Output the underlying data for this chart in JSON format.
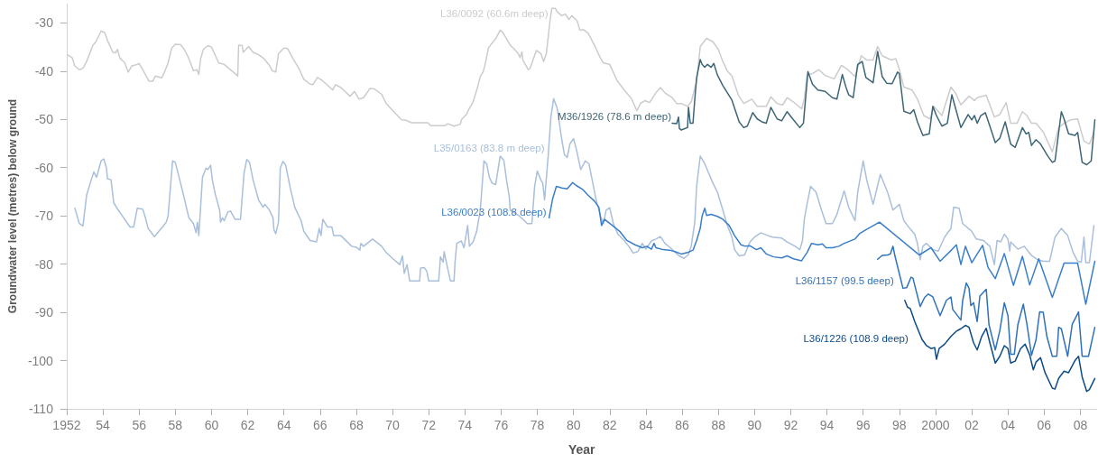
{
  "chart_data": {
    "type": "line",
    "xlabel": "Year",
    "ylabel": "Groundwater level (metres) below ground",
    "xlim": [
      1952,
      2008.9
    ],
    "ylim": [
      -110,
      -26
    ],
    "xticks": [
      1952,
      {
        "value": 1954,
        "label": "54"
      },
      {
        "value": 1956,
        "label": "56"
      },
      {
        "value": 1958,
        "label": "58"
      },
      {
        "value": 1960,
        "label": "60"
      },
      {
        "value": 1962,
        "label": "62"
      },
      {
        "value": 1964,
        "label": "64"
      },
      {
        "value": 1966,
        "label": "66"
      },
      {
        "value": 1968,
        "label": "68"
      },
      {
        "value": 1970,
        "label": "70"
      },
      {
        "value": 1972,
        "label": "72"
      },
      {
        "value": 1974,
        "label": "74"
      },
      {
        "value": 1976,
        "label": "76"
      },
      {
        "value": 1978,
        "label": "78"
      },
      {
        "value": 1980,
        "label": "80"
      },
      {
        "value": 1982,
        "label": "82"
      },
      {
        "value": 1984,
        "label": "84"
      },
      {
        "value": 1986,
        "label": "86"
      },
      {
        "value": 1988,
        "label": "88"
      },
      {
        "value": 1990,
        "label": "90"
      },
      {
        "value": 1992,
        "label": "92"
      },
      {
        "value": 1994,
        "label": "94"
      },
      {
        "value": 1996,
        "label": "96"
      },
      {
        "value": 1998,
        "label": "98"
      },
      2000,
      {
        "value": 2002,
        "label": "02"
      },
      {
        "value": 2004,
        "label": "04"
      },
      {
        "value": 2006,
        "label": "06"
      },
      {
        "value": 2008,
        "label": "08"
      }
    ],
    "yticks": [
      -110,
      -100,
      -90,
      -80,
      -70,
      -60,
      -50,
      -40,
      -30
    ],
    "marker": "none",
    "series": [
      {
        "name": "L36/0092 (60.6m deep)",
        "color": "#cccccc",
        "x": [
          1952.03,
          1952.3,
          1952.45,
          1952.7,
          1952.9,
          1953.1,
          1953.45,
          1953.6,
          1953.9,
          1954.1,
          1954.25,
          1954.55,
          1954.7,
          1954.8,
          1954.95,
          1955.2,
          1955.4,
          1955.6,
          1955.9,
          1956.0,
          1956.2,
          1956.55,
          1956.75,
          1956.9,
          1957.25,
          1957.4,
          1957.6,
          1957.8,
          1958.0,
          1958.3,
          1958.5,
          1958.75,
          1959.0,
          1959.2,
          1959.3,
          1959.4,
          1959.55,
          1959.8,
          1960.0,
          1960.4,
          1960.7,
          1961.45,
          1961.5,
          1961.7,
          1961.75,
          1962.05,
          1962.3,
          1962.6,
          1962.9,
          1963.2,
          1963.35,
          1963.55,
          1963.7,
          1964.0,
          1964.2,
          1964.5,
          1964.85,
          1965.1,
          1965.45,
          1965.6,
          1965.85,
          1966.1,
          1966.35,
          1966.7,
          1966.85,
          1967.15,
          1967.65,
          1967.9,
          1968.15,
          1968.4,
          1968.75,
          1969.0,
          1969.4,
          1969.65,
          1970.05,
          1970.5,
          1970.75,
          1971.05,
          1971.95,
          1972.1,
          1972.9,
          1973.05,
          1973.4,
          1973.75,
          1973.8,
          1974.1,
          1974.2,
          1974.45,
          1974.7,
          1974.85,
          1975.0,
          1975.1,
          1975.3,
          1975.45,
          1975.7,
          1975.95,
          1976.1,
          1976.3,
          1976.5,
          1976.7,
          1976.95,
          1977.05,
          1977.15,
          1977.2,
          1977.5,
          1977.6,
          1977.95,
          1978.2,
          1978.35,
          1978.5,
          1978.7,
          1978.8,
          1979.0,
          1979.1,
          1979.35,
          1979.55,
          1979.75,
          1979.9,
          1980.2,
          1980.35,
          1980.55,
          1980.8,
          1981.15,
          1981.5,
          1981.65,
          1982.0,
          1982.4,
          1982.8,
          1983.2,
          1983.5,
          1983.7,
          1983.95,
          1984.2,
          1984.55,
          1984.8,
          1985.05,
          1985.45,
          1985.7,
          1985.95,
          1986.3,
          1986.5,
          1986.8,
          1987.0,
          1987.35,
          1987.7,
          1988.0,
          1988.25,
          1988.5,
          1988.75,
          1989.1,
          1989.4,
          1989.85,
          1990.15,
          1990.65,
          1990.9,
          1991.25,
          1991.55,
          1991.8,
          1992.15,
          1992.6,
          1992.75,
          1992.9,
          1993.2,
          1993.55,
          1993.9,
          1994.4,
          1994.8,
          1995.15,
          1995.55,
          1995.9,
          1996.2,
          1996.55,
          1996.8,
          1997.05,
          1997.55,
          1997.8,
          1998.0,
          1998.25,
          1998.7,
          1999.0,
          1999.35,
          1999.7,
          1999.9,
          2000.35,
          2000.85,
          2001.1,
          2001.4,
          2001.85,
          2002.15,
          2002.3,
          2002.8,
          2003.25,
          2003.55,
          2003.9,
          2004.15,
          2004.5,
          2004.8,
          2005.05,
          2005.3,
          2005.55,
          2005.95,
          2006.45,
          2006.8,
          2007.1,
          2007.45,
          2007.85,
          2008.2,
          2008.5,
          2008.75
        ],
        "values": [
          -36.6,
          -37.2,
          -38.9,
          -39.7,
          -39.4,
          -38.0,
          -34.6,
          -34.0,
          -31.7,
          -32.0,
          -33.6,
          -36.1,
          -36.2,
          -35.5,
          -37.4,
          -38.2,
          -40.2,
          -38.9,
          -38.6,
          -38.4,
          -39.7,
          -42.1,
          -42.1,
          -41.0,
          -41.4,
          -40.2,
          -38.3,
          -35.2,
          -34.4,
          -34.5,
          -35.5,
          -37.4,
          -39.9,
          -39.7,
          -40.7,
          -37.4,
          -35.5,
          -34.7,
          -35.0,
          -38.3,
          -38.6,
          -41.0,
          -34.6,
          -34.7,
          -36.1,
          -34.9,
          -36.1,
          -36.6,
          -37.4,
          -38.8,
          -39.9,
          -40.2,
          -36.4,
          -35.2,
          -35.3,
          -37.4,
          -39.6,
          -41.7,
          -42.7,
          -42.8,
          -41.3,
          -41.9,
          -42.7,
          -43.9,
          -42.8,
          -43.4,
          -45.2,
          -44.2,
          -45.8,
          -45.5,
          -43.6,
          -43.7,
          -44.8,
          -46.7,
          -48.3,
          -50.1,
          -50.2,
          -50.7,
          -50.7,
          -51.3,
          -51.3,
          -50.9,
          -51.4,
          -51.0,
          -50.1,
          -48.9,
          -48.0,
          -46.4,
          -43.3,
          -41.1,
          -40.2,
          -38.9,
          -35.2,
          -34.4,
          -33.3,
          -31.5,
          -32.0,
          -33.3,
          -34.6,
          -35.3,
          -36.4,
          -37.2,
          -36.0,
          -37.7,
          -39.7,
          -39.4,
          -35.7,
          -36.4,
          -38.0,
          -36.3,
          -29.6,
          -27.0,
          -27.0,
          -27.7,
          -28.5,
          -28.2,
          -29.3,
          -28.5,
          -29.6,
          -31.5,
          -31.4,
          -32.1,
          -34.6,
          -37.4,
          -38.3,
          -38.6,
          -41.9,
          -43.9,
          -45.7,
          -48.2,
          -46.7,
          -46.1,
          -46.5,
          -44.5,
          -43.4,
          -44.5,
          -45.5,
          -46.7,
          -46.7,
          -47.3,
          -46.4,
          -42.1,
          -34.9,
          -33.2,
          -33.9,
          -35.5,
          -38.0,
          -40.0,
          -41.0,
          -44.9,
          -46.7,
          -45.8,
          -47.3,
          -47.3,
          -45.3,
          -46.7,
          -47.0,
          -45.5,
          -46.4,
          -47.8,
          -45.8,
          -40.8,
          -40.5,
          -39.7,
          -40.9,
          -41.6,
          -38.8,
          -39.7,
          -41.1,
          -36.8,
          -37.7,
          -37.7,
          -34.9,
          -36.8,
          -37.7,
          -37.4,
          -39.6,
          -43.3,
          -43.9,
          -45.8,
          -49.2,
          -49.9,
          -47.3,
          -49.2,
          -43.3,
          -44.5,
          -47.0,
          -45.2,
          -46.1,
          -45.5,
          -45.0,
          -49.5,
          -49.0,
          -46.5,
          -50.8,
          -50.8,
          -48.4,
          -49.2,
          -50.8,
          -50.8,
          -52.6,
          -56.7,
          -51.7,
          -50.8,
          -50.1,
          -49.9,
          -54.5,
          -55.1,
          -52.7
        ]
      },
      {
        "name": "M36/1926 (78.6 m deep)",
        "color": "#3d6576",
        "x": [
          1985.45,
          1985.7,
          1985.8,
          1985.85,
          1985.95,
          1986.3,
          1986.35,
          1986.45,
          1986.6,
          1986.7,
          1986.8,
          1987.0,
          1987.1,
          1987.25,
          1987.4,
          1987.6,
          1987.75,
          1987.95,
          1988.25,
          1988.5,
          1988.75,
          1989.15,
          1989.4,
          1989.6,
          1989.9,
          1990.15,
          1990.4,
          1990.65,
          1990.9,
          1991.25,
          1991.5,
          1991.8,
          1992.15,
          1992.5,
          1992.7,
          1992.95,
          1993.2,
          1993.5,
          1993.9,
          1994.3,
          1994.55,
          1994.85,
          1995.05,
          1995.2,
          1995.45,
          1995.7,
          1995.95,
          1996.15,
          1996.55,
          1996.8,
          1997.05,
          1997.3,
          1997.6,
          1997.9,
          1998.0,
          1998.25,
          1998.6,
          1998.8,
          1999.0,
          1999.3,
          1999.65,
          1999.85,
          2000.05,
          2000.35,
          2000.65,
          2000.9,
          2001.15,
          2001.4,
          2001.8,
          2002.0,
          2002.15,
          2002.3,
          2002.5,
          2002.75,
          2003.0,
          2003.3,
          2003.55,
          2003.85,
          2004.15,
          2004.4,
          2004.8,
          2005.0,
          2005.15,
          2005.3,
          2005.55,
          2005.8,
          2006.2,
          2006.45,
          2006.6,
          2006.95,
          2007.1,
          2007.35,
          2007.7,
          2007.85,
          2008.1,
          2008.35,
          2008.6,
          2008.8
        ],
        "values": [
          -50.8,
          -50.9,
          -49.5,
          -51.9,
          -52.2,
          -51.7,
          -47.5,
          -50.8,
          -50.8,
          -45.8,
          -41.4,
          -37.6,
          -38.6,
          -39.2,
          -38.6,
          -39.2,
          -38.4,
          -40.8,
          -43.0,
          -44.5,
          -46.0,
          -50.5,
          -51.7,
          -51.4,
          -48.6,
          -49.9,
          -50.5,
          -50.8,
          -47.5,
          -49.9,
          -50.3,
          -48.4,
          -50.1,
          -51.7,
          -50.8,
          -40.1,
          -42.7,
          -43.9,
          -44.2,
          -45.5,
          -45.8,
          -40.7,
          -43.3,
          -44.9,
          -45.5,
          -38.6,
          -38.0,
          -41.3,
          -42.4,
          -35.9,
          -41.1,
          -42.5,
          -42.6,
          -40.2,
          -40.5,
          -48.3,
          -48.8,
          -48.0,
          -50.5,
          -53.3,
          -53.0,
          -47.3,
          -49.2,
          -51.4,
          -50.8,
          -44.9,
          -48.3,
          -51.7,
          -49.0,
          -50.1,
          -49.2,
          -50.8,
          -49.2,
          -48.6,
          -51.4,
          -54.8,
          -53.9,
          -50.5,
          -55.1,
          -55.8,
          -51.7,
          -53.0,
          -52.7,
          -55.4,
          -54.2,
          -55.1,
          -57.6,
          -58.9,
          -58.6,
          -48.4,
          -49.9,
          -53.0,
          -53.3,
          -52.7,
          -58.9,
          -59.4,
          -58.6,
          -50.1
        ]
      },
      {
        "name": "L35/0163 (83.8 m deep)",
        "color": "#a9bfdb",
        "x": [
          1952.45,
          1952.7,
          1952.9,
          1953.1,
          1953.35,
          1953.5,
          1953.65,
          1953.9,
          1954.05,
          1954.2,
          1954.25,
          1954.45,
          1954.6,
          1954.85,
          1955.2,
          1955.5,
          1955.7,
          1955.9,
          1956.2,
          1956.35,
          1956.5,
          1956.85,
          1957.15,
          1957.3,
          1957.5,
          1957.6,
          1957.85,
          1958.0,
          1958.25,
          1958.5,
          1958.75,
          1959.0,
          1959.15,
          1959.22,
          1959.3,
          1959.5,
          1959.7,
          1959.8,
          1959.95,
          1960.05,
          1960.2,
          1960.45,
          1960.5,
          1960.6,
          1960.7,
          1960.9,
          1961.05,
          1961.3,
          1961.6,
          1961.8,
          1961.95,
          1962.1,
          1962.3,
          1962.6,
          1962.85,
          1962.95,
          1963.2,
          1963.4,
          1963.45,
          1963.55,
          1963.7,
          1963.8,
          1963.95,
          1964.1,
          1964.35,
          1964.6,
          1964.95,
          1965.1,
          1965.45,
          1965.8,
          1965.95,
          1966.05,
          1966.15,
          1966.4,
          1966.65,
          1966.75,
          1967.15,
          1967.75,
          1968.0,
          1968.2,
          1968.25,
          1968.4,
          1968.9,
          1969.4,
          1969.65,
          1970.0,
          1970.4,
          1970.55,
          1970.65,
          1970.8,
          1970.95,
          1971.5,
          1971.55,
          1971.75,
          1971.9,
          1972.0,
          1972.55,
          1972.65,
          1972.8,
          1972.85,
          1973.0,
          1973.2,
          1973.4,
          1973.45,
          1973.55,
          1973.8,
          1973.95,
          1974.15,
          1974.25,
          1974.45,
          1974.65,
          1974.85,
          1975.05,
          1975.2,
          1975.35,
          1975.5,
          1975.7,
          1975.95,
          1976.15,
          1976.3,
          1976.45,
          1976.5,
          1977.0,
          1977.45,
          1977.7,
          1977.85,
          1978.0,
          1978.2,
          1978.3,
          1978.4,
          1978.6,
          1978.75,
          1978.9,
          1979.1,
          1979.35,
          1979.5,
          1979.65,
          1979.8,
          1980.0,
          1980.15,
          1980.4,
          1980.65,
          1980.85,
          1981.0,
          1981.25,
          1981.5,
          1981.65,
          1981.8,
          1982.0,
          1982.2,
          1982.45,
          1982.8,
          1983.05,
          1983.3,
          1983.55,
          1983.8,
          1984.0,
          1984.3,
          1984.55,
          1984.8,
          1985.05,
          1985.35,
          1985.8,
          1986.1,
          1986.35,
          1986.5,
          1986.7,
          1986.8,
          1987.0,
          1987.25,
          1987.7,
          1987.95,
          1988.25,
          1988.5,
          1988.75,
          1988.9,
          1989.15,
          1989.45,
          1989.75,
          1990.0,
          1990.35,
          1990.75,
          1991.0,
          1991.5,
          1991.8,
          1992.25,
          1992.5,
          1992.65,
          1992.75,
          1992.9,
          1993.1,
          1993.4,
          1993.7,
          1993.95,
          1994.3,
          1994.55,
          1994.95,
          1995.2,
          1995.55,
          1995.7,
          1996.0,
          1996.2,
          1996.55,
          1996.95,
          1997.35,
          1997.65,
          1998.0,
          1998.25,
          1998.45,
          1998.85,
          1999.0,
          1999.15,
          1999.3,
          1999.5,
          1999.85,
          2000.15,
          2000.5,
          2000.85,
          2001.0,
          2001.3,
          2001.5,
          2002.0,
          2002.25,
          2002.65,
          2003.0,
          2003.25,
          2003.4,
          2003.6,
          2003.8,
          2004.0,
          2004.1,
          2004.15,
          2004.55,
          2004.9,
          2005.3,
          2005.65,
          2005.95,
          2006.3,
          2006.6,
          2006.95,
          2007.3,
          2007.6,
          2007.85,
          2008.05,
          2008.2,
          2008.3,
          2008.5,
          2008.75
        ],
        "values": [
          -68.4,
          -71.6,
          -72.1,
          -65.7,
          -62.6,
          -60.9,
          -62.0,
          -58.6,
          -58.2,
          -60.1,
          -62.3,
          -62.5,
          -67.3,
          -68.8,
          -70.7,
          -72.3,
          -72.3,
          -68.4,
          -68.6,
          -70.4,
          -72.6,
          -74.3,
          -72.9,
          -72.3,
          -71.3,
          -70.1,
          -58.6,
          -58.9,
          -62.6,
          -66.4,
          -70.4,
          -71.6,
          -73.5,
          -71.3,
          -74.1,
          -62.0,
          -60.1,
          -60.4,
          -59.5,
          -62.6,
          -65.4,
          -68.8,
          -71.3,
          -70.4,
          -71.0,
          -69.2,
          -69.0,
          -70.7,
          -70.7,
          -61.1,
          -58.3,
          -58.9,
          -62.6,
          -66.7,
          -68.2,
          -67.6,
          -68.8,
          -70.4,
          -72.9,
          -73.7,
          -71.3,
          -60.1,
          -58.7,
          -59.5,
          -64.2,
          -68.2,
          -71.0,
          -73.2,
          -75.1,
          -75.4,
          -72.6,
          -74.1,
          -70.7,
          -72.3,
          -72.3,
          -74.1,
          -74.1,
          -76.3,
          -76.5,
          -77.1,
          -75.7,
          -76.3,
          -74.8,
          -76.3,
          -77.6,
          -78.8,
          -80.1,
          -78.3,
          -81.9,
          -80.1,
          -83.5,
          -83.5,
          -80.8,
          -80.7,
          -81.5,
          -83.5,
          -83.5,
          -78.5,
          -79.6,
          -77.4,
          -80.1,
          -83.5,
          -83.5,
          -79.8,
          -75.7,
          -75.2,
          -76.6,
          -72.0,
          -76.3,
          -75.4,
          -73.2,
          -68.8,
          -58.6,
          -59.2,
          -62.0,
          -63.2,
          -63.5,
          -57.6,
          -58.5,
          -62.6,
          -66.0,
          -68.8,
          -70.0,
          -71.6,
          -71.6,
          -63.9,
          -60.7,
          -62.6,
          -63.2,
          -66.7,
          -57.6,
          -49.5,
          -45.7,
          -47.7,
          -54.2,
          -57.3,
          -57.9,
          -55.1,
          -54.0,
          -56.1,
          -60.4,
          -58.6,
          -59.2,
          -62.0,
          -66.7,
          -70.1,
          -71.6,
          -68.8,
          -68.3,
          -71.6,
          -73.8,
          -75.1,
          -76.3,
          -77.7,
          -77.4,
          -75.7,
          -76.9,
          -75.2,
          -74.8,
          -74.3,
          -75.7,
          -76.6,
          -78.2,
          -78.8,
          -78.0,
          -76.3,
          -71.3,
          -63.9,
          -57.6,
          -59.2,
          -63.2,
          -65.1,
          -68.8,
          -72.0,
          -74.4,
          -77.0,
          -78.3,
          -78.1,
          -75.4,
          -74.4,
          -73.5,
          -74.1,
          -74.4,
          -74.6,
          -75.4,
          -76.3,
          -77.0,
          -75.1,
          -70.7,
          -67.6,
          -63.9,
          -65.1,
          -68.8,
          -71.6,
          -71.6,
          -69.7,
          -64.8,
          -68.2,
          -71.0,
          -65.1,
          -58.6,
          -62.6,
          -67.6,
          -61.4,
          -65.1,
          -68.8,
          -67.6,
          -71.0,
          -72.0,
          -73.8,
          -75.7,
          -79.1,
          -76.3,
          -75.7,
          -77.0,
          -77.3,
          -74.4,
          -72.6,
          -68.2,
          -68.4,
          -71.6,
          -73.2,
          -74.8,
          -75.1,
          -76.3,
          -80.1,
          -75.1,
          -75.4,
          -73.8,
          -74.8,
          -77.3,
          -75.4,
          -76.9,
          -76.3,
          -78.2,
          -79.1,
          -79.4,
          -79.4,
          -74.4,
          -72.6,
          -74.1,
          -77.6,
          -79.4,
          -79.6,
          -74.4,
          -79.7,
          -79.7,
          -72.0
        ]
      },
      {
        "name": "L36/0023 (108.8 deep)",
        "color": "#3a7ec9",
        "x": [
          1978.65,
          1978.85,
          1979.05,
          1979.35,
          1979.65,
          1979.95,
          1980.15,
          1980.5,
          1980.8,
          1981.15,
          1981.4,
          1981.55,
          1981.7,
          1982.15,
          1982.55,
          1982.95,
          1983.4,
          1983.8,
          1984.05,
          1984.3,
          1984.45,
          1984.55,
          1984.95,
          1985.3,
          1985.6,
          1985.95,
          1986.3,
          1986.6,
          1986.8,
          1987.0,
          1987.1,
          1987.25,
          1987.35,
          1987.6,
          1987.95,
          1988.25,
          1988.6,
          1988.9,
          1989.25,
          1989.5,
          1989.75,
          1990.1,
          1990.35,
          1990.65,
          1991.05,
          1991.5,
          1991.8,
          1992.15,
          1992.6,
          1992.9,
          1993.15,
          1993.5,
          1993.75,
          1993.95,
          1994.3,
          1994.65,
          1994.95,
          1995.55,
          1995.8,
          1996.15,
          1996.9,
          1999.1,
          1999.75,
          2000.25,
          2000.9,
          2001.15,
          2001.4,
          2001.65,
          2002.0,
          2002.6,
          2002.9,
          2003.3,
          2003.8,
          2004.3,
          2004.8,
          2005.2,
          2005.7,
          2006.45,
          2007.1,
          2007.85,
          2008.3,
          2008.8
        ],
        "values": [
          -70.4,
          -66.4,
          -63.9,
          -64.2,
          -64.4,
          -63.1,
          -63.7,
          -64.5,
          -65.7,
          -66.9,
          -68.2,
          -72.0,
          -70.7,
          -72.0,
          -73.2,
          -75.1,
          -76.0,
          -76.6,
          -76.3,
          -76.9,
          -75.7,
          -76.6,
          -77.0,
          -77.1,
          -77.4,
          -77.9,
          -77.6,
          -77.1,
          -75.1,
          -72.6,
          -70.1,
          -68.4,
          -69.9,
          -69.7,
          -70.1,
          -70.7,
          -72.0,
          -74.1,
          -76.0,
          -76.3,
          -76.2,
          -77.0,
          -76.6,
          -77.9,
          -78.5,
          -78.7,
          -78.3,
          -78.9,
          -79.3,
          -77.6,
          -75.7,
          -76.0,
          -75.8,
          -76.6,
          -76.6,
          -76.3,
          -75.7,
          -74.8,
          -73.7,
          -72.9,
          -71.3,
          -78.1,
          -76.6,
          -79.4,
          -77.0,
          -76.0,
          -80.1,
          -76.3,
          -79.7,
          -76.1,
          -80.7,
          -83.0,
          -77.8,
          -84.4,
          -78.4,
          -84.3,
          -78.9,
          -86.9,
          -79.8,
          -79.8,
          -88.3,
          -79.4
        ]
      },
      {
        "name": "L36/1157 (99.5 deep)",
        "color": "#2f72ba",
        "x": [
          1996.8,
          1997.05,
          1997.35,
          1997.5,
          1997.65,
          1997.75,
          1998.2,
          1998.4,
          1998.65,
          1998.75,
          1999.15,
          1999.4,
          1999.6,
          1999.85,
          2000.25,
          2000.6,
          2000.85,
          2000.95,
          2001.4,
          2001.5,
          2001.7,
          2001.85,
          2001.95,
          2002.1,
          2002.3,
          2002.45,
          2002.8,
          2002.9,
          2002.95,
          2003.3,
          2003.55,
          2003.8,
          2004.0,
          2004.15,
          2004.35,
          2004.55,
          2004.85,
          2005.05,
          2005.3,
          2005.55,
          2005.75,
          2005.95,
          2006.15,
          2006.45,
          2006.7,
          2006.8,
          2006.95,
          2007.3,
          2007.55,
          2007.9,
          2008.1,
          2008.45,
          2008.8
        ],
        "values": [
          -79.0,
          -78.2,
          -78.1,
          -77.9,
          -76.3,
          -78.2,
          -85.0,
          -84.9,
          -82.7,
          -82.9,
          -88.8,
          -86.9,
          -86.2,
          -86.8,
          -90.7,
          -87.5,
          -86.8,
          -89.4,
          -91.6,
          -87.5,
          -83.9,
          -85.0,
          -88.6,
          -88.0,
          -91.9,
          -86.6,
          -85.2,
          -90.0,
          -92.5,
          -97.8,
          -93.8,
          -88.0,
          -90.7,
          -98.7,
          -98.7,
          -92.5,
          -88.3,
          -92.5,
          -98.9,
          -95.7,
          -89.9,
          -90.0,
          -95.0,
          -99.1,
          -99.1,
          -93.1,
          -93.4,
          -99.1,
          -92.5,
          -89.9,
          -99.1,
          -99.1,
          -93.1
        ]
      },
      {
        "name": "L36/1226 (108.9 deep)",
        "color": "#0d4b86",
        "x": [
          1998.3,
          1998.45,
          1998.6,
          1998.85,
          1999.25,
          1999.5,
          1999.75,
          1999.95,
          2000.05,
          2000.2,
          2000.5,
          2000.85,
          2001.15,
          2001.4,
          2001.65,
          2001.85,
          2002.1,
          2002.3,
          2002.55,
          2002.8,
          2003.0,
          2003.3,
          2003.55,
          2003.8,
          2004.0,
          2004.15,
          2004.4,
          2004.7,
          2004.95,
          2005.2,
          2005.4,
          2005.55,
          2005.8,
          2006.05,
          2006.45,
          2006.6,
          2006.8,
          2007.1,
          2007.35,
          2007.7,
          2007.9,
          2008.1,
          2008.35,
          2008.5,
          2008.8
        ],
        "values": [
          -87.5,
          -88.9,
          -89.2,
          -91.9,
          -95.6,
          -96.9,
          -97.5,
          -97.3,
          -99.7,
          -97.5,
          -96.6,
          -95.0,
          -93.9,
          -93.4,
          -92.7,
          -93.1,
          -96.3,
          -97.8,
          -95.0,
          -93.3,
          -96.3,
          -100.5,
          -99.1,
          -96.9,
          -97.5,
          -100.5,
          -100.1,
          -97.5,
          -96.6,
          -98.8,
          -101.9,
          -100.3,
          -99.4,
          -102.5,
          -105.7,
          -105.9,
          -103.7,
          -102.2,
          -102.5,
          -100.0,
          -99.1,
          -103.4,
          -106.4,
          -106.0,
          -103.7
        ]
      }
    ]
  }
}
